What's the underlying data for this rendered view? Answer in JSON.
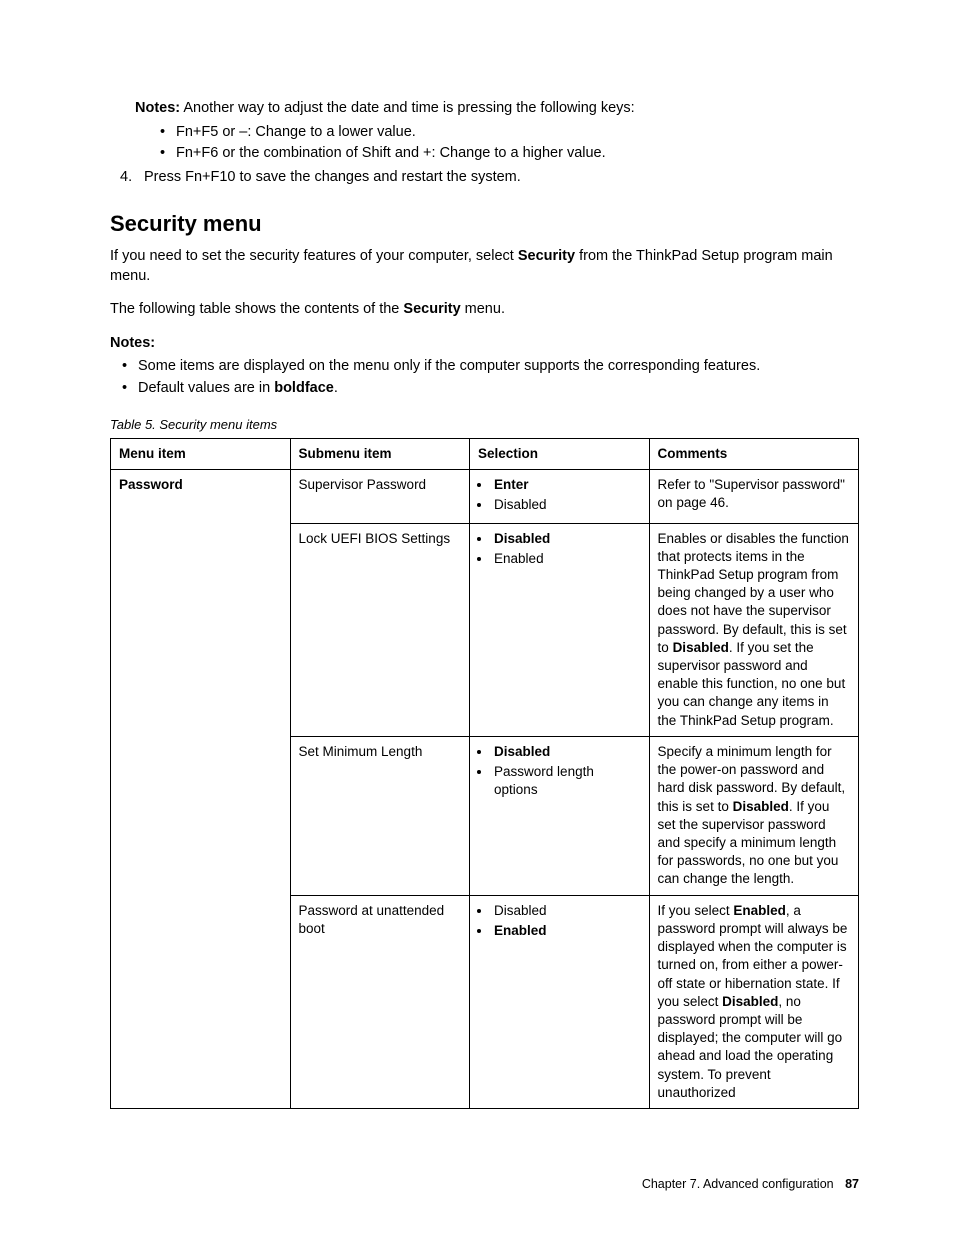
{
  "intro": {
    "notes_label": "Notes:",
    "notes_text": " Another way to adjust the date and time is pressing the following keys:",
    "bullets": [
      "Fn+F5 or –: Change to a lower value.",
      "Fn+F6 or the combination of Shift and +: Change to a higher value."
    ],
    "step4_num": "4.",
    "step4_text": "Press Fn+F10 to save the changes and restart the system."
  },
  "heading": "Security menu",
  "p1_a": "If you need to set the security features of your computer, select ",
  "p1_bold": "Security",
  "p1_b": " from the ThinkPad Setup program main menu.",
  "p2_a": "The following table shows the contents of the ",
  "p2_bold": "Security",
  "p2_b": " menu.",
  "notes2_label": "Notes:",
  "notes2_items": [
    "Some items are displayed on the menu only if the computer supports the corresponding features."
  ],
  "notes2_last_a": "Default values are in ",
  "notes2_last_bold": "boldface",
  "notes2_last_b": ".",
  "table_caption": "Table 5.  Security menu items",
  "table": {
    "col_widths": [
      "24%",
      "24%",
      "24%",
      "28%"
    ],
    "headers": [
      "Menu item",
      "Submenu item",
      "Selection",
      "Comments"
    ],
    "rows": [
      {
        "menu_item": "Password",
        "submenu": "Supervisor Password",
        "selection": [
          {
            "text": "Enter",
            "bold": true
          },
          {
            "text": "Disabled",
            "bold": false
          }
        ],
        "comments_parts": [
          {
            "text": "Refer to \"Supervisor password\" on page 46.",
            "bold": false
          }
        ]
      },
      {
        "menu_item": "",
        "submenu": "Lock UEFI BIOS Settings",
        "selection": [
          {
            "text": "Disabled",
            "bold": true
          },
          {
            "text": "Enabled",
            "bold": false
          }
        ],
        "comments_parts": [
          {
            "text": "Enables or disables the function that protects items in the ThinkPad Setup program from being changed by a user who does not have the supervisor password. By default, this is set to ",
            "bold": false
          },
          {
            "text": "Disabled",
            "bold": true
          },
          {
            "text": ". If you set the supervisor password and enable this function, no one but you can change any items in the ThinkPad Setup program.",
            "bold": false
          }
        ]
      },
      {
        "menu_item": "",
        "submenu": "Set Minimum Length",
        "selection": [
          {
            "text": "Disabled",
            "bold": true
          },
          {
            "text": "Password length options",
            "bold": false
          }
        ],
        "comments_parts": [
          {
            "text": "Specify a minimum length for the power-on password and hard disk password. By default, this is set to ",
            "bold": false
          },
          {
            "text": "Disabled",
            "bold": true
          },
          {
            "text": ". If you set the supervisor password and specify a minimum length for passwords, no one but you can change the length.",
            "bold": false
          }
        ]
      },
      {
        "menu_item": "",
        "submenu": "Password at unattended boot",
        "selection": [
          {
            "text": "Disabled",
            "bold": false
          },
          {
            "text": "Enabled",
            "bold": true
          }
        ],
        "comments_parts": [
          {
            "text": "If you select ",
            "bold": false
          },
          {
            "text": "Enabled",
            "bold": true
          },
          {
            "text": ", a password prompt will always be displayed when the computer is turned on, from either a power-off state or hibernation state. If you select ",
            "bold": false
          },
          {
            "text": "Disabled",
            "bold": true
          },
          {
            "text": ", no password prompt will be displayed; the computer will go ahead and load the operating system. To prevent unauthorized",
            "bold": false
          }
        ]
      }
    ]
  },
  "footer": {
    "chapter": "Chapter 7. Advanced configuration",
    "page": "87"
  }
}
